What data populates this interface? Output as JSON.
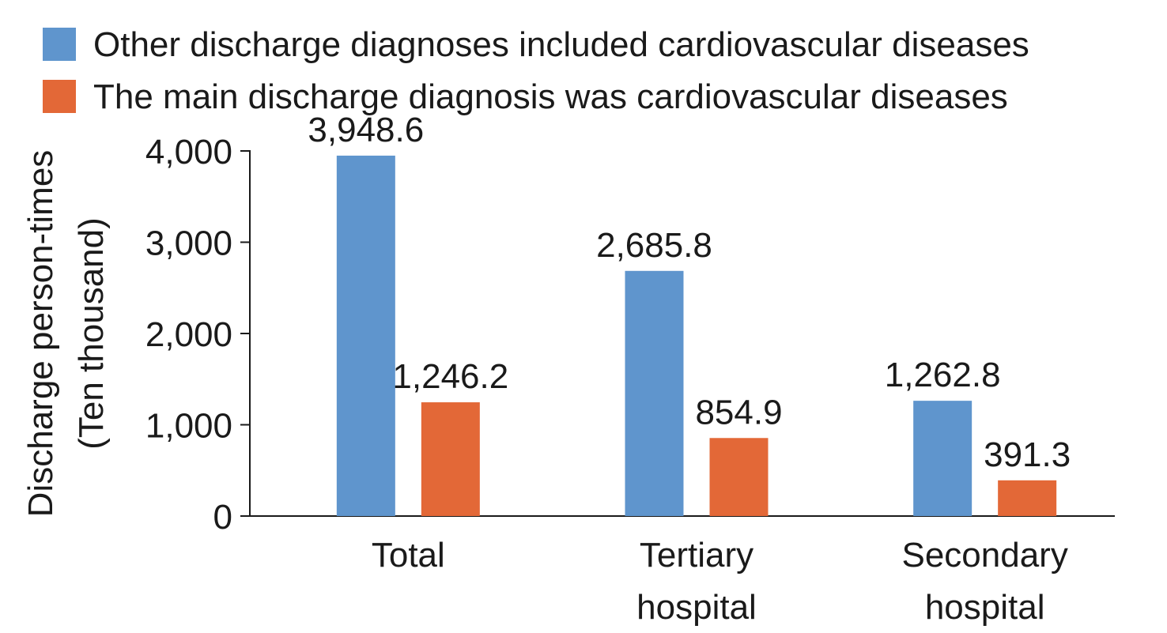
{
  "chart_data": {
    "type": "bar",
    "categories": [
      [
        "Total"
      ],
      [
        "Tertiary",
        "hospital"
      ],
      [
        "Secondary",
        "hospital"
      ]
    ],
    "series": [
      {
        "name": "Other discharge diagnoses included cardiovascular diseases",
        "color": "#5f95cd",
        "values": [
          3948.6,
          2685.8,
          1262.8
        ],
        "labels": [
          "3,948.6",
          "2,685.8",
          "1,262.8"
        ]
      },
      {
        "name": "The main discharge diagnosis was cardiovascular diseases",
        "color": "#e36837",
        "values": [
          1246.2,
          854.9,
          391.3
        ],
        "labels": [
          "1,246.2",
          "854.9",
          "391.3"
        ]
      }
    ],
    "ylabel": [
      "Discharge person-times",
      "(Ten thousand)"
    ],
    "ylim": [
      0,
      4000
    ],
    "yticks": [
      0,
      1000,
      2000,
      3000,
      4000
    ],
    "ytick_labels": [
      "0",
      "1,000",
      "2,000",
      "3,000",
      "4,000"
    ],
    "grid": false,
    "legend": "top-left"
  }
}
